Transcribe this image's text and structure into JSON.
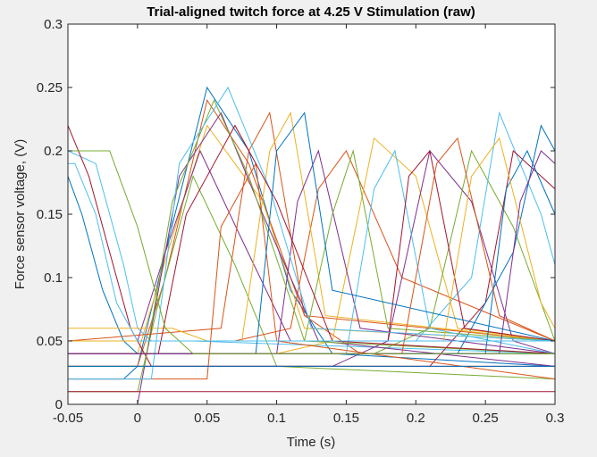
{
  "chart_data": {
    "type": "line",
    "title": "Trial-aligned twitch force at 4.25 V Stimulation (raw)",
    "xlabel": "Time (s)",
    "ylabel": "Force sensor voltage, (V)",
    "xlim": [
      -0.05,
      0.3
    ],
    "ylim": [
      0,
      0.3
    ],
    "xticks": [
      -0.05,
      0,
      0.05,
      0.1,
      0.15,
      0.2,
      0.25,
      0.3
    ],
    "xtick_labels": [
      "-0.05",
      "0",
      "0.05",
      "0.1",
      "0.15",
      "0.2",
      "0.25",
      "0.3"
    ],
    "yticks": [
      0,
      0.05,
      0.1,
      0.15,
      0.2,
      0.25,
      0.3
    ],
    "ytick_labels": [
      "0",
      "0.05",
      "0.1",
      "0.15",
      "0.2",
      "0.25",
      "0.3"
    ],
    "grid": false,
    "colors": [
      "#0072BD",
      "#D95319",
      "#EDB120",
      "#7E2F8E",
      "#77AC30",
      "#4DBEEE",
      "#A2142F"
    ],
    "series": [
      {
        "x": [
          -0.05,
          -0.01,
          0.0,
          0.02,
          0.05,
          0.08,
          0.11,
          0.14,
          0.3
        ],
        "y": [
          0.02,
          0.02,
          0.03,
          0.12,
          0.25,
          0.2,
          0.09,
          0.04,
          0.03
        ]
      },
      {
        "x": [
          -0.05,
          0.0,
          0.02,
          0.05,
          0.08,
          0.12,
          0.16,
          0.3
        ],
        "y": [
          0.03,
          0.03,
          0.1,
          0.24,
          0.19,
          0.07,
          0.04,
          0.04
        ]
      },
      {
        "x": [
          -0.05,
          0.0,
          0.03,
          0.05,
          0.09,
          0.12,
          0.3
        ],
        "y": [
          0.04,
          0.04,
          0.15,
          0.22,
          0.16,
          0.06,
          0.05
        ]
      },
      {
        "x": [
          -0.05,
          0.0,
          0.02,
          0.045,
          0.075,
          0.11,
          0.3
        ],
        "y": [
          0.05,
          0.05,
          0.12,
          0.2,
          0.13,
          0.05,
          0.05
        ]
      },
      {
        "x": [
          -0.05,
          0.0,
          0.015,
          0.04,
          0.07,
          0.1,
          0.3
        ],
        "y": [
          0.01,
          0.01,
          0.08,
          0.18,
          0.11,
          0.03,
          0.02
        ]
      },
      {
        "x": [
          -0.05,
          -0.03,
          -0.01,
          0.0,
          0.01,
          0.04,
          0.3
        ],
        "y": [
          0.2,
          0.19,
          0.11,
          0.06,
          0.05,
          0.05,
          0.04
        ]
      },
      {
        "x": [
          -0.05,
          -0.035,
          -0.02,
          -0.005,
          0.01,
          0.3
        ],
        "y": [
          0.22,
          0.18,
          0.12,
          0.06,
          0.03,
          0.03
        ]
      },
      {
        "x": [
          -0.05,
          -0.04,
          -0.025,
          -0.01,
          0.0,
          0.3
        ],
        "y": [
          0.18,
          0.15,
          0.09,
          0.05,
          0.04,
          0.04
        ]
      },
      {
        "x": [
          -0.05,
          0.03,
          0.07,
          0.11,
          0.13,
          0.15,
          0.19,
          0.3
        ],
        "y": [
          0.05,
          0.05,
          0.05,
          0.06,
          0.17,
          0.2,
          0.1,
          0.05
        ]
      },
      {
        "x": [
          -0.05,
          0.1,
          0.14,
          0.17,
          0.2,
          0.23,
          0.3
        ],
        "y": [
          0.04,
          0.04,
          0.05,
          0.21,
          0.18,
          0.06,
          0.05
        ]
      },
      {
        "x": [
          -0.05,
          0.14,
          0.18,
          0.21,
          0.24,
          0.27,
          0.3
        ],
        "y": [
          0.03,
          0.03,
          0.05,
          0.2,
          0.16,
          0.05,
          0.04
        ]
      },
      {
        "x": [
          -0.05,
          0.17,
          0.21,
          0.24,
          0.27,
          0.3
        ],
        "y": [
          0.04,
          0.04,
          0.06,
          0.2,
          0.14,
          0.05
        ]
      },
      {
        "x": [
          -0.05,
          0.2,
          0.24,
          0.26,
          0.29,
          0.3
        ],
        "y": [
          0.05,
          0.05,
          0.1,
          0.23,
          0.15,
          0.11
        ]
      },
      {
        "x": [
          -0.05,
          0.21,
          0.25,
          0.27,
          0.3
        ],
        "y": [
          0.03,
          0.03,
          0.08,
          0.2,
          0.17
        ]
      },
      {
        "x": [
          -0.05,
          0.23,
          0.27,
          0.29,
          0.3
        ],
        "y": [
          0.04,
          0.04,
          0.12,
          0.22,
          0.2
        ]
      },
      {
        "x": [
          -0.05,
          0.06,
          0.08,
          0.095,
          0.12,
          0.3
        ],
        "y": [
          0.05,
          0.06,
          0.2,
          0.23,
          0.07,
          0.05
        ]
      },
      {
        "x": [
          -0.05,
          0.075,
          0.095,
          0.11,
          0.135,
          0.3
        ],
        "y": [
          0.05,
          0.05,
          0.2,
          0.23,
          0.07,
          0.05
        ]
      },
      {
        "x": [
          -0.05,
          0.1,
          0.115,
          0.13,
          0.16,
          0.3
        ],
        "y": [
          0.04,
          0.04,
          0.16,
          0.2,
          0.06,
          0.04
        ]
      },
      {
        "x": [
          -0.05,
          0.12,
          0.14,
          0.155,
          0.18,
          0.3
        ],
        "y": [
          0.05,
          0.05,
          0.15,
          0.2,
          0.06,
          0.05
        ]
      },
      {
        "x": [
          -0.05,
          0.15,
          0.17,
          0.185,
          0.21,
          0.3
        ],
        "y": [
          0.04,
          0.04,
          0.17,
          0.2,
          0.06,
          0.04
        ]
      },
      {
        "x": [
          -0.05,
          0.18,
          0.195,
          0.21,
          0.235,
          0.3
        ],
        "y": [
          0.05,
          0.05,
          0.18,
          0.2,
          0.06,
          0.05
        ]
      },
      {
        "x": [
          -0.05,
          0.25,
          0.265,
          0.28,
          0.3
        ],
        "y": [
          0.04,
          0.04,
          0.17,
          0.2,
          0.15
        ]
      },
      {
        "x": [
          -0.05,
          0.05,
          0.06,
          0.085,
          0.1,
          0.3
        ],
        "y": [
          0.02,
          0.02,
          0.14,
          0.19,
          0.05,
          0.02
        ]
      },
      {
        "x": [
          -0.05,
          0.025,
          0.05,
          0.09,
          0.3
        ],
        "y": [
          0.06,
          0.06,
          0.05,
          0.05,
          0.05
        ]
      },
      {
        "x": [
          -0.05,
          0.0,
          0.03,
          0.06,
          0.09,
          0.13,
          0.3
        ],
        "y": [
          0.0,
          0.0,
          0.18,
          0.23,
          0.15,
          0.05,
          0.03
        ]
      },
      {
        "x": [
          -0.05,
          0.005,
          0.025,
          0.055,
          0.08,
          0.12,
          0.3
        ],
        "y": [
          0.03,
          0.03,
          0.16,
          0.24,
          0.18,
          0.05,
          0.04
        ]
      },
      {
        "x": [
          -0.05,
          0.01,
          0.03,
          0.065,
          0.095,
          0.125,
          0.3
        ],
        "y": [
          0.02,
          0.02,
          0.19,
          0.25,
          0.17,
          0.06,
          0.05
        ]
      },
      {
        "x": [
          -0.05,
          0.015,
          0.035,
          0.07,
          0.1,
          0.14,
          0.3
        ],
        "y": [
          0.04,
          0.04,
          0.15,
          0.22,
          0.16,
          0.05,
          0.04
        ]
      },
      {
        "x": [
          -0.05,
          0.085,
          0.1,
          0.12,
          0.14,
          0.3
        ],
        "y": [
          0.04,
          0.04,
          0.2,
          0.23,
          0.09,
          0.05
        ]
      },
      {
        "x": [
          -0.05,
          0.19,
          0.215,
          0.23,
          0.26,
          0.3
        ],
        "y": [
          0.04,
          0.04,
          0.19,
          0.21,
          0.07,
          0.05
        ]
      },
      {
        "x": [
          -0.05,
          0.22,
          0.24,
          0.26,
          0.29,
          0.3
        ],
        "y": [
          0.05,
          0.05,
          0.18,
          0.21,
          0.08,
          0.06
        ]
      },
      {
        "x": [
          -0.05,
          0.26,
          0.275,
          0.29,
          0.3
        ],
        "y": [
          0.04,
          0.04,
          0.16,
          0.2,
          0.19
        ]
      },
      {
        "x": [
          -0.05,
          -0.02,
          0.0,
          0.02,
          0.04,
          0.3
        ],
        "y": [
          0.2,
          0.2,
          0.14,
          0.06,
          0.04,
          0.04
        ]
      },
      {
        "x": [
          -0.05,
          -0.045,
          -0.03,
          -0.015,
          0.0,
          0.3
        ],
        "y": [
          0.19,
          0.19,
          0.15,
          0.08,
          0.05,
          0.05
        ]
      },
      {
        "x": [
          -0.05,
          0.1,
          0.2,
          0.3
        ],
        "y": [
          0.01,
          0.01,
          0.01,
          0.01
        ]
      },
      {
        "x": [
          -0.05,
          0.08,
          0.18,
          0.3
        ],
        "y": [
          0.03,
          0.03,
          0.03,
          0.03
        ]
      }
    ]
  }
}
